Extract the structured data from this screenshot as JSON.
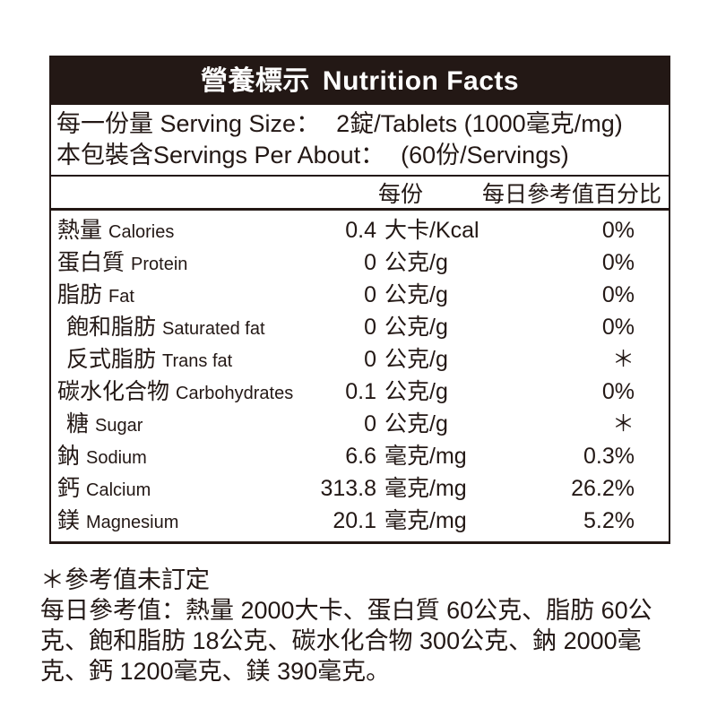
{
  "label": {
    "title": {
      "zh": "營養標示",
      "en": "Nutrition Facts"
    },
    "serving": {
      "line1_prefix": "每一份量 Serving Size：",
      "line1_value": "2錠/Tablets (1000毫克/mg)",
      "line2_prefix": "本包裝含Servings Per About：",
      "line2_value": "(60份/Servings)"
    },
    "columns": {
      "per_serving": "每份",
      "daily_value": "每日參考值百分比"
    },
    "rows": [
      {
        "zh": "熱量",
        "en": "Calories",
        "amount": "0.4",
        "unit": "大卡/Kcal",
        "dv": "0%",
        "indent": false
      },
      {
        "zh": "蛋白質",
        "en": "Protein",
        "amount": "0",
        "unit": "公克/g",
        "dv": "0%",
        "indent": false
      },
      {
        "zh": "脂肪",
        "en": "Fat",
        "amount": "0",
        "unit": "公克/g",
        "dv": "0%",
        "indent": false
      },
      {
        "zh": "飽和脂肪",
        "en": "Saturated fat",
        "amount": "0",
        "unit": "公克/g",
        "dv": "0%",
        "indent": true
      },
      {
        "zh": "反式脂肪",
        "en": "Trans fat",
        "amount": "0",
        "unit": "公克/g",
        "dv": "＊",
        "indent": true
      },
      {
        "zh": "碳水化合物",
        "en": "Carbohydrates",
        "amount": "0.1",
        "unit": "公克/g",
        "dv": "0%",
        "indent": false
      },
      {
        "zh": "糖",
        "en": "Sugar",
        "amount": "0",
        "unit": "公克/g",
        "dv": "＊",
        "indent": true
      },
      {
        "zh": "鈉",
        "en": "Sodium",
        "amount": "6.6",
        "unit": "毫克/mg",
        "dv": "0.3%",
        "indent": false
      },
      {
        "zh": "鈣",
        "en": "Calcium",
        "amount": "313.8",
        "unit": "毫克/mg",
        "dv": "26.2%",
        "indent": false
      },
      {
        "zh": "鎂",
        "en": "Magnesium",
        "amount": "20.1",
        "unit": "毫克/mg",
        "dv": "5.2%",
        "indent": false
      }
    ],
    "footnotes": {
      "line1": "＊參考值未訂定",
      "line2": "每日參考值：熱量 2000大卡、蛋白質 60公克、脂肪 60公克、飽和脂肪 18公克、碳水化合物 300公克、鈉 2000毫克、鈣 1200毫克、鎂 390毫克。"
    },
    "colors": {
      "ink": "#231815",
      "header_bg": "#231815",
      "header_text": "#ffffff",
      "page_bg": "#ffffff"
    }
  }
}
